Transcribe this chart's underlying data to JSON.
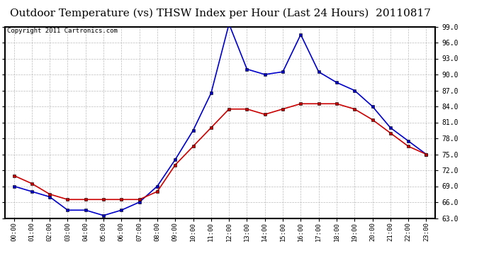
{
  "title": "Outdoor Temperature (vs) THSW Index per Hour (Last 24 Hours)  20110817",
  "copyright": "Copyright 2011 Cartronics.com",
  "hours": [
    "00:00",
    "01:00",
    "02:00",
    "03:00",
    "04:00",
    "05:00",
    "06:00",
    "07:00",
    "08:00",
    "09:00",
    "10:00",
    "11:00",
    "12:00",
    "13:00",
    "14:00",
    "15:00",
    "16:00",
    "17:00",
    "18:00",
    "19:00",
    "20:00",
    "21:00",
    "22:00",
    "23:00"
  ],
  "temp_red": [
    71.0,
    69.5,
    67.5,
    66.5,
    66.5,
    66.5,
    66.5,
    66.5,
    68.0,
    73.0,
    76.5,
    80.0,
    83.5,
    83.5,
    82.5,
    83.5,
    84.5,
    84.5,
    84.5,
    83.5,
    81.5,
    79.0,
    76.5,
    75.0
  ],
  "thsw_blue": [
    69.0,
    68.0,
    67.0,
    64.5,
    64.5,
    63.5,
    64.5,
    66.0,
    69.0,
    74.0,
    79.5,
    86.5,
    99.5,
    91.0,
    90.0,
    90.5,
    97.5,
    90.5,
    88.5,
    87.0,
    84.0,
    80.0,
    77.5,
    75.0
  ],
  "ylim": [
    63.0,
    99.0
  ],
  "yticks": [
    63.0,
    66.0,
    69.0,
    72.0,
    75.0,
    78.0,
    81.0,
    84.0,
    87.0,
    90.0,
    93.0,
    96.0,
    99.0
  ],
  "bg_color": "#ffffff",
  "plot_bg_color": "#ffffff",
  "grid_color": "#aaaaaa",
  "red_color": "#cc0000",
  "blue_color": "#0000cc",
  "title_fontsize": 11,
  "copyright_fontsize": 6.5
}
